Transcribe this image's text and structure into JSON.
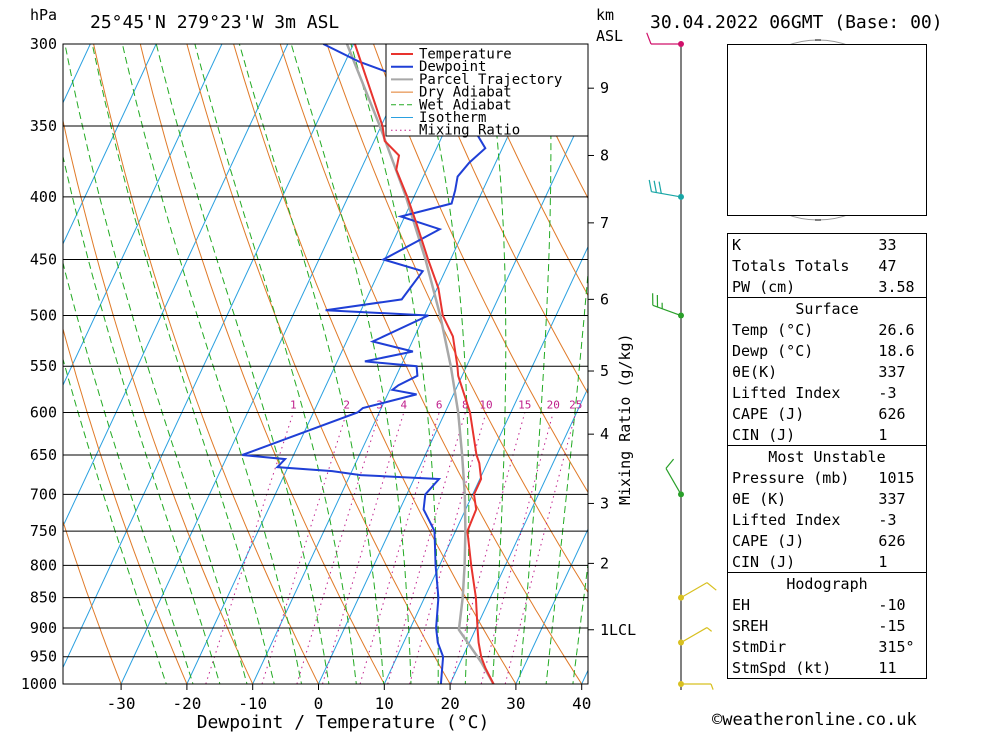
{
  "header": {
    "pressure_unit": "hPa",
    "location": "25°45'N 279°23'W 3m ASL",
    "height_unit": "km",
    "height_ref": "ASL",
    "datetime": "30.04.2022 06GMT (Base: 00)"
  },
  "copyright": "©weatheronline.co.uk",
  "hodograph": {
    "unit": "kt",
    "rings": [
      "25",
      "50",
      "75"
    ]
  },
  "indices": {
    "k_label": "K",
    "k_value": "33",
    "tt_label": "Totals Totals",
    "tt_value": "47",
    "pw_label": "PW (cm)",
    "pw_value": "3.58",
    "surface_title": "Surface",
    "s_temp_label": "Temp (°C)",
    "s_temp_value": "26.6",
    "s_dewp_label": "Dewp (°C)",
    "s_dewp_value": "18.6",
    "s_theta_label": "θE(K)",
    "s_theta_value": "337",
    "s_li_label": "Lifted Index",
    "s_li_value": "-3",
    "s_cape_label": "CAPE (J)",
    "s_cape_value": "626",
    "s_cin_label": "CIN (J)",
    "s_cin_value": "1",
    "mu_title": "Most Unstable",
    "mu_press_label": "Pressure (mb)",
    "mu_press_value": "1015",
    "mu_theta_label": "θE (K)",
    "mu_theta_value": "337",
    "mu_li_label": "Lifted Index",
    "mu_li_value": "-3",
    "mu_cape_label": "CAPE (J)",
    "mu_cape_value": "626",
    "mu_cin_label": "CIN (J)",
    "mu_cin_value": "1",
    "hodo_title": "Hodograph",
    "eh_label": "EH",
    "eh_value": "-10",
    "sreh_label": "SREH",
    "sreh_value": "-15",
    "stmdir_label": "StmDir",
    "stmdir_value": "315°",
    "stmspd_label": "StmSpd (kt)",
    "stmspd_value": "11"
  },
  "colors": {
    "temperature": "#e8332e",
    "dewpoint": "#1f3fd6",
    "parcel": "#a8a8a8",
    "dry_adiabat": "#e07a28",
    "wet_adiabat": "#22aa22",
    "isotherm": "#2aa0e0",
    "mixing_ratio": "#c0208c",
    "wind_magenta": "#d0106a",
    "wind_cyan": "#18a6a6",
    "wind_green": "#2aa02a",
    "wind_yellow": "#d8c020"
  },
  "chart_data": {
    "type": "skew-t",
    "xlabel": "Dewpoint / Temperature (°C)",
    "ylabel_left": "hPa",
    "ylabel_right": "Mixing Ratio (g/kg)",
    "pressure_ticks": [
      300,
      350,
      400,
      450,
      500,
      550,
      600,
      650,
      700,
      750,
      800,
      850,
      900,
      950,
      1000
    ],
    "temperature_ticks": [
      -30,
      -20,
      -10,
      0,
      10,
      20,
      30,
      40
    ],
    "height_ticks": [
      {
        "km": "9",
        "p": 326
      },
      {
        "km": "8",
        "p": 370
      },
      {
        "km": "7",
        "p": 420
      },
      {
        "km": "6",
        "p": 485
      },
      {
        "km": "5",
        "p": 555
      },
      {
        "km": "4",
        "p": 625
      },
      {
        "km": "3",
        "p": 712
      },
      {
        "km": "2",
        "p": 797
      },
      {
        "km": "1LCL",
        "p": 903
      }
    ],
    "mixing_ratio_labels": [
      "1",
      "2",
      "3",
      "4",
      "6",
      "8",
      "10",
      "15",
      "20",
      "25"
    ],
    "mixing_ratio_values": [
      1,
      2,
      3,
      4,
      6,
      8,
      10,
      15,
      20,
      25
    ],
    "legend": [
      "Temperature",
      "Dewpoint",
      "Parcel Trajectory",
      "Dry Adiabat",
      "Wet Adiabat",
      "Isotherm",
      "Mixing Ratio"
    ],
    "temperature": [
      {
        "p": 1000,
        "t": 26.6
      },
      {
        "p": 970,
        "t": 24.2
      },
      {
        "p": 950,
        "t": 22.8
      },
      {
        "p": 925,
        "t": 21.4
      },
      {
        "p": 900,
        "t": 20.2
      },
      {
        "p": 850,
        "t": 17.8
      },
      {
        "p": 800,
        "t": 14.8
      },
      {
        "p": 750,
        "t": 11.8
      },
      {
        "p": 720,
        "t": 11.6
      },
      {
        "p": 700,
        "t": 10.2
      },
      {
        "p": 680,
        "t": 10.2
      },
      {
        "p": 660,
        "t": 8.8
      },
      {
        "p": 650,
        "t": 7.8
      },
      {
        "p": 600,
        "t": 3.8
      },
      {
        "p": 560,
        "t": -0.6
      },
      {
        "p": 550,
        "t": -1.4
      },
      {
        "p": 520,
        "t": -4.2
      },
      {
        "p": 500,
        "t": -7.2
      },
      {
        "p": 475,
        "t": -9.8
      },
      {
        "p": 450,
        "t": -13.4
      },
      {
        "p": 420,
        "t": -17.8
      },
      {
        "p": 400,
        "t": -21.0
      },
      {
        "p": 380,
        "t": -24.6
      },
      {
        "p": 370,
        "t": -25.2
      },
      {
        "p": 360,
        "t": -28.4
      },
      {
        "p": 350,
        "t": -29.8
      },
      {
        "p": 300,
        "t": -39.8
      }
    ],
    "dewpoint": [
      {
        "p": 1000,
        "t": 18.6
      },
      {
        "p": 950,
        "t": 17.0
      },
      {
        "p": 925,
        "t": 15.2
      },
      {
        "p": 900,
        "t": 13.9
      },
      {
        "p": 850,
        "t": 12.1
      },
      {
        "p": 800,
        "t": 9.4
      },
      {
        "p": 750,
        "t": 6.8
      },
      {
        "p": 720,
        "t": 3.6
      },
      {
        "p": 700,
        "t": 2.8
      },
      {
        "p": 680,
        "t": 3.8
      },
      {
        "p": 675,
        "t": -8.4
      },
      {
        "p": 670,
        "t": -13.0
      },
      {
        "p": 665,
        "t": -21.6
      },
      {
        "p": 655,
        "t": -21.0
      },
      {
        "p": 650,
        "t": -27.8
      },
      {
        "p": 600,
        "t": -13.3
      },
      {
        "p": 595,
        "t": -12.8
      },
      {
        "p": 580,
        "t": -5.6
      },
      {
        "p": 575,
        "t": -9.6
      },
      {
        "p": 570,
        "t": -9.0
      },
      {
        "p": 560,
        "t": -6.8
      },
      {
        "p": 550,
        "t": -7.6
      },
      {
        "p": 545,
        "t": -15.8
      },
      {
        "p": 535,
        "t": -9.2
      },
      {
        "p": 525,
        "t": -16.0
      },
      {
        "p": 500,
        "t": -9.4
      },
      {
        "p": 495,
        "t": -25.4
      },
      {
        "p": 485,
        "t": -14.6
      },
      {
        "p": 460,
        "t": -13.4
      },
      {
        "p": 450,
        "t": -20.2
      },
      {
        "p": 425,
        "t": -13.8
      },
      {
        "p": 415,
        "t": -20.6
      },
      {
        "p": 405,
        "t": -13.8
      },
      {
        "p": 395,
        "t": -14.2
      },
      {
        "p": 385,
        "t": -14.8
      },
      {
        "p": 375,
        "t": -14.0
      },
      {
        "p": 365,
        "t": -12.6
      },
      {
        "p": 350,
        "t": -16.2
      },
      {
        "p": 330,
        "t": -22.0
      },
      {
        "p": 310,
        "t": -38.0
      },
      {
        "p": 300,
        "t": -44.6
      }
    ],
    "parcel": [
      {
        "p": 1000,
        "t": 26.6
      },
      {
        "p": 960,
        "t": 23.2
      },
      {
        "p": 903,
        "t": 17.5
      },
      {
        "p": 850,
        "t": 15.8
      },
      {
        "p": 800,
        "t": 13.8
      },
      {
        "p": 750,
        "t": 11.5
      },
      {
        "p": 700,
        "t": 8.8
      },
      {
        "p": 650,
        "t": 5.6
      },
      {
        "p": 600,
        "t": 2.0
      },
      {
        "p": 550,
        "t": -2.4
      },
      {
        "p": 500,
        "t": -7.6
      },
      {
        "p": 450,
        "t": -13.8
      },
      {
        "p": 400,
        "t": -21.2
      },
      {
        "p": 350,
        "t": -30.2
      },
      {
        "p": 300,
        "t": -41.0
      }
    ],
    "winds": [
      {
        "p": 300,
        "dir": 270,
        "kt": 10,
        "color": "wind_magenta"
      },
      {
        "p": 400,
        "dir": 280,
        "kt": 30,
        "color": "wind_cyan"
      },
      {
        "p": 500,
        "dir": 290,
        "kt": 25,
        "color": "wind_green"
      },
      {
        "p": 700,
        "dir": 330,
        "kt": 10,
        "color": "wind_green"
      },
      {
        "p": 850,
        "dir": 60,
        "kt": 10,
        "color": "wind_yellow"
      },
      {
        "p": 925,
        "dir": 60,
        "kt": 5,
        "color": "wind_yellow"
      },
      {
        "p": 1000,
        "dir": 90,
        "kt": 5,
        "color": "wind_yellow"
      }
    ]
  }
}
